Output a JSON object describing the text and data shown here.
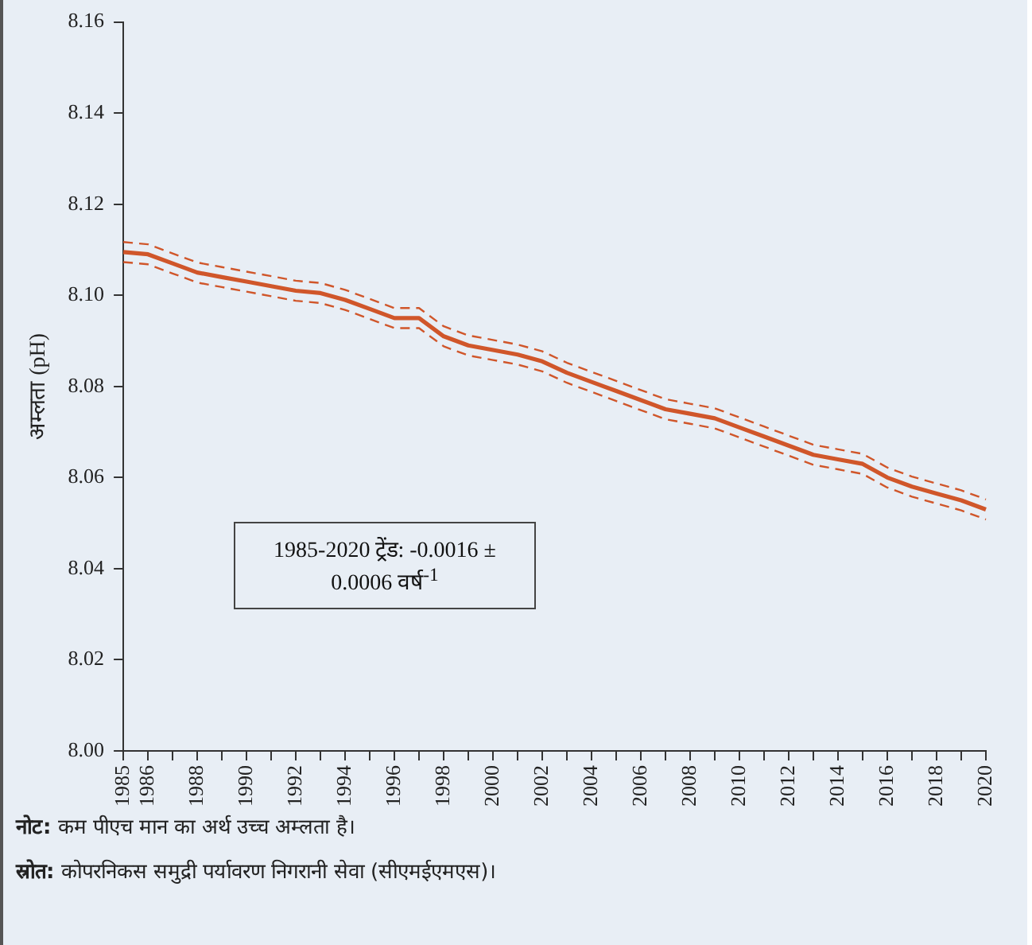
{
  "chart_data": {
    "type": "line",
    "ylabel": "अम्लता (pH)",
    "categories": [
      "1985",
      "1986",
      null,
      "1988",
      null,
      "1990",
      null,
      "1992",
      null,
      "1994",
      null,
      "1996",
      null,
      "1998",
      null,
      "2000",
      null,
      "2002",
      null,
      "2004",
      null,
      "2006",
      null,
      "2008",
      null,
      "2010",
      null,
      "2012",
      null,
      "2014",
      null,
      "2016",
      null,
      "2018",
      null,
      "2020"
    ],
    "series": [
      {
        "color": "#d0562a",
        "line_style": "solid",
        "values": [
          8.1095,
          8.109,
          8.107,
          8.105,
          8.104,
          8.103,
          8.102,
          8.101,
          8.1005,
          8.099,
          8.097,
          8.095,
          8.095,
          8.091,
          8.089,
          8.088,
          8.087,
          8.0855,
          8.083,
          8.081,
          8.079,
          8.077,
          8.075,
          8.074,
          8.073,
          8.071,
          8.069,
          8.067,
          8.065,
          8.064,
          8.063,
          8.06,
          8.058,
          8.0565,
          8.055,
          8.053
        ]
      },
      {
        "color": "#d0562a",
        "line_style": "dashed",
        "values": [
          8.1073,
          8.1068,
          8.1048,
          8.1028,
          8.1018,
          8.1008,
          8.0998,
          8.0988,
          8.0983,
          8.0968,
          8.0948,
          8.0928,
          8.0928,
          8.0888,
          8.0868,
          8.0858,
          8.0848,
          8.0833,
          8.0808,
          8.0788,
          8.0768,
          8.0748,
          8.0728,
          8.0718,
          8.0708,
          8.0688,
          8.0668,
          8.0648,
          8.0628,
          8.0618,
          8.0608,
          8.0578,
          8.0558,
          8.0543,
          8.0528,
          8.0508
        ]
      },
      {
        "color": "#d0562a",
        "line_style": "dashed",
        "values": [
          8.1117,
          8.1112,
          8.1092,
          8.1072,
          8.1062,
          8.1052,
          8.1042,
          8.1032,
          8.1027,
          8.1012,
          8.0992,
          8.0972,
          8.0972,
          8.0932,
          8.0912,
          8.0902,
          8.0892,
          8.0877,
          8.0852,
          8.0832,
          8.0812,
          8.0792,
          8.0772,
          8.0762,
          8.0752,
          8.0732,
          8.0712,
          8.0692,
          8.0672,
          8.0662,
          8.0652,
          8.0622,
          8.0602,
          8.0587,
          8.0572,
          8.0552
        ]
      }
    ],
    "ylim": [
      8.0,
      8.16
    ],
    "yticks": [
      {
        "value": 8.0,
        "label": "8.00"
      },
      {
        "value": 8.02,
        "label": "8.02"
      },
      {
        "value": 8.04,
        "label": "8.04"
      },
      {
        "value": 8.06,
        "label": "8.06"
      },
      {
        "value": 8.08,
        "label": "8.08"
      },
      {
        "value": 8.1,
        "label": "8.10"
      },
      {
        "value": 8.12,
        "label": "8.12"
      },
      {
        "value": 8.14,
        "label": "8.14"
      },
      {
        "value": 8.16,
        "label": "8.16"
      }
    ],
    "annotations": [
      "1985-2020 ट्रेंड: -0.0016 ± 0.0006 वर्ष$^{-1}$",
      "नोट: कम पीएच मान का अर्थ उच्च अम्लता है।",
      "स्रोत: कोपरनिकस समुद्री पर्यावरण निगरानी सेवा (सीएमईएमएस)।"
    ]
  }
}
